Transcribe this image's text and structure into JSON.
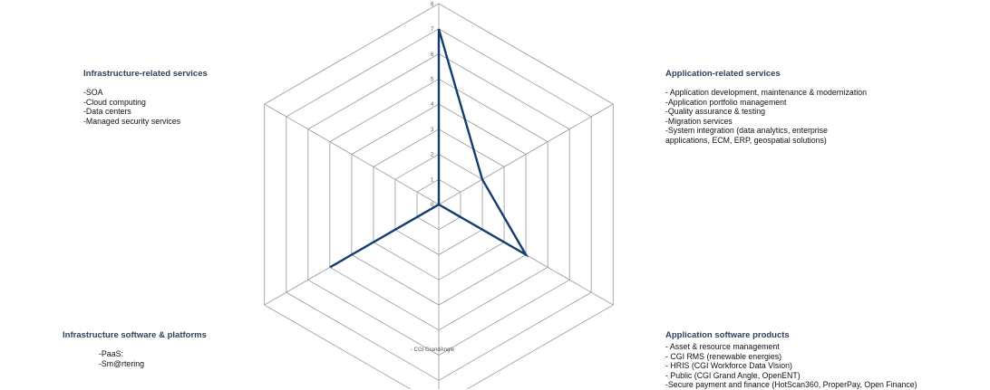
{
  "chart_data": {
    "type": "radar",
    "axes": [
      "Application-related services",
      "Application software products",
      "",
      "Infrastructure software & platforms",
      "Infrastructure-related services",
      ""
    ],
    "values": [
      7,
      2,
      4,
      0,
      5,
      0
    ],
    "rlim": [
      0,
      8
    ],
    "ticks": [
      "0",
      "1",
      "2",
      "3",
      "4",
      "5",
      "6",
      "7",
      "8"
    ],
    "grid": true,
    "line_color": "#123d6e",
    "grid_color": "#9a9a9a"
  },
  "blocks": {
    "infra_services": {
      "title": "Infrastructure-related services",
      "items": [
        "-SOA",
        "-Cloud computing",
        "-Data centers",
        "-Managed security services"
      ]
    },
    "app_services": {
      "title": "Application-related services",
      "items": [
        "- Application development, maintenance & modernization",
        "-Application portfolio management",
        "-Quality assurance & testing",
        "-Migration services",
        "-System integration (data analytics, enterprise",
        "applications, ECM, ERP, geospatial solutions)"
      ]
    },
    "infra_software": {
      "title": "Infrastructure software & platforms",
      "items": [
        "-PaaS:",
        "-Sm@rtering"
      ]
    },
    "app_software": {
      "title": "Application software products",
      "items": [
        "- Asset & resource management",
        "- CGI RMS (renewable energies)",
        "- HRIS (CGI Workforce Data Vision)",
        "- Public (CGI Grand Angle, OpenENT)",
        "-Secure payment and finance (HotScan360, ProperPay, Open Finance)"
      ]
    }
  },
  "annotation": "- CGI GrandAngle"
}
